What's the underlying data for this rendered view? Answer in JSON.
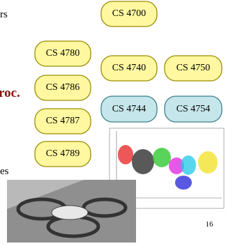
{
  "slide": {
    "fragments": [
      "rs",
      "roc.",
      "es"
    ],
    "nodes": [
      {
        "label": "CS 4700"
      },
      {
        "label": "CS 4780"
      },
      {
        "label": "CS 4740"
      },
      {
        "label": "CS 4750"
      },
      {
        "label": "CS 4786"
      },
      {
        "label": "CS 4744"
      },
      {
        "label": "CS 4754"
      },
      {
        "label": "CS 4787"
      },
      {
        "label": "CS 4789"
      }
    ],
    "page_number": "16"
  }
}
